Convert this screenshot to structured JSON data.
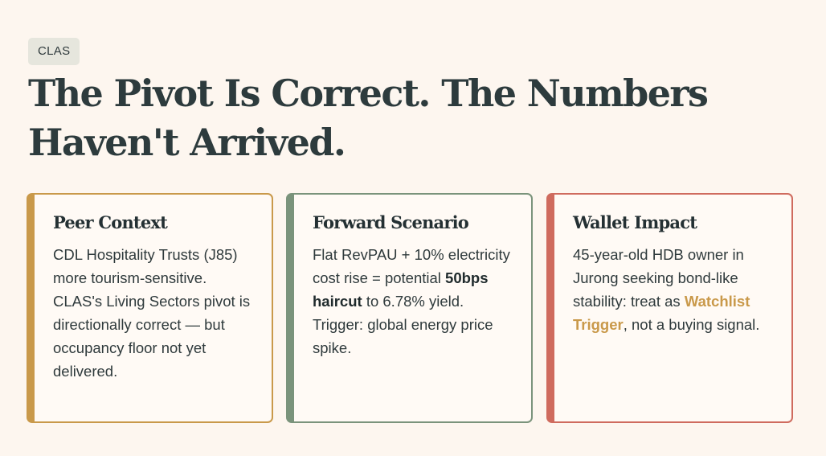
{
  "tag": "CLAS",
  "title": "The Pivot Is Correct. The Numbers Haven't Arrived.",
  "colors": {
    "background": "#fdf6ef",
    "gold_accent": "#c9994a",
    "green_accent": "#7a937b",
    "red_accent": "#cf6b5e",
    "text": "#2f3a3c"
  },
  "cards": [
    {
      "title": "Peer Context",
      "body": "CDL Hospitality Trusts (J85) more tourism-sensitive. CLAS's Living Sectors pivot is directionally correct — but occupancy floor not yet delivered."
    },
    {
      "title": "Forward Scenario",
      "body_before": "Flat RevPAU + 10% electricity cost rise = potential ",
      "body_bold": "50bps haircut",
      "body_after": " to 6.78% yield. Trigger: global energy price spike."
    },
    {
      "title": "Wallet Impact",
      "body_before": "45-year-old HDB owner in Jurong seeking bond-like stability: treat as ",
      "body_highlight": "Watchlist Trigger",
      "body_after": ", not a buying signal."
    }
  ]
}
